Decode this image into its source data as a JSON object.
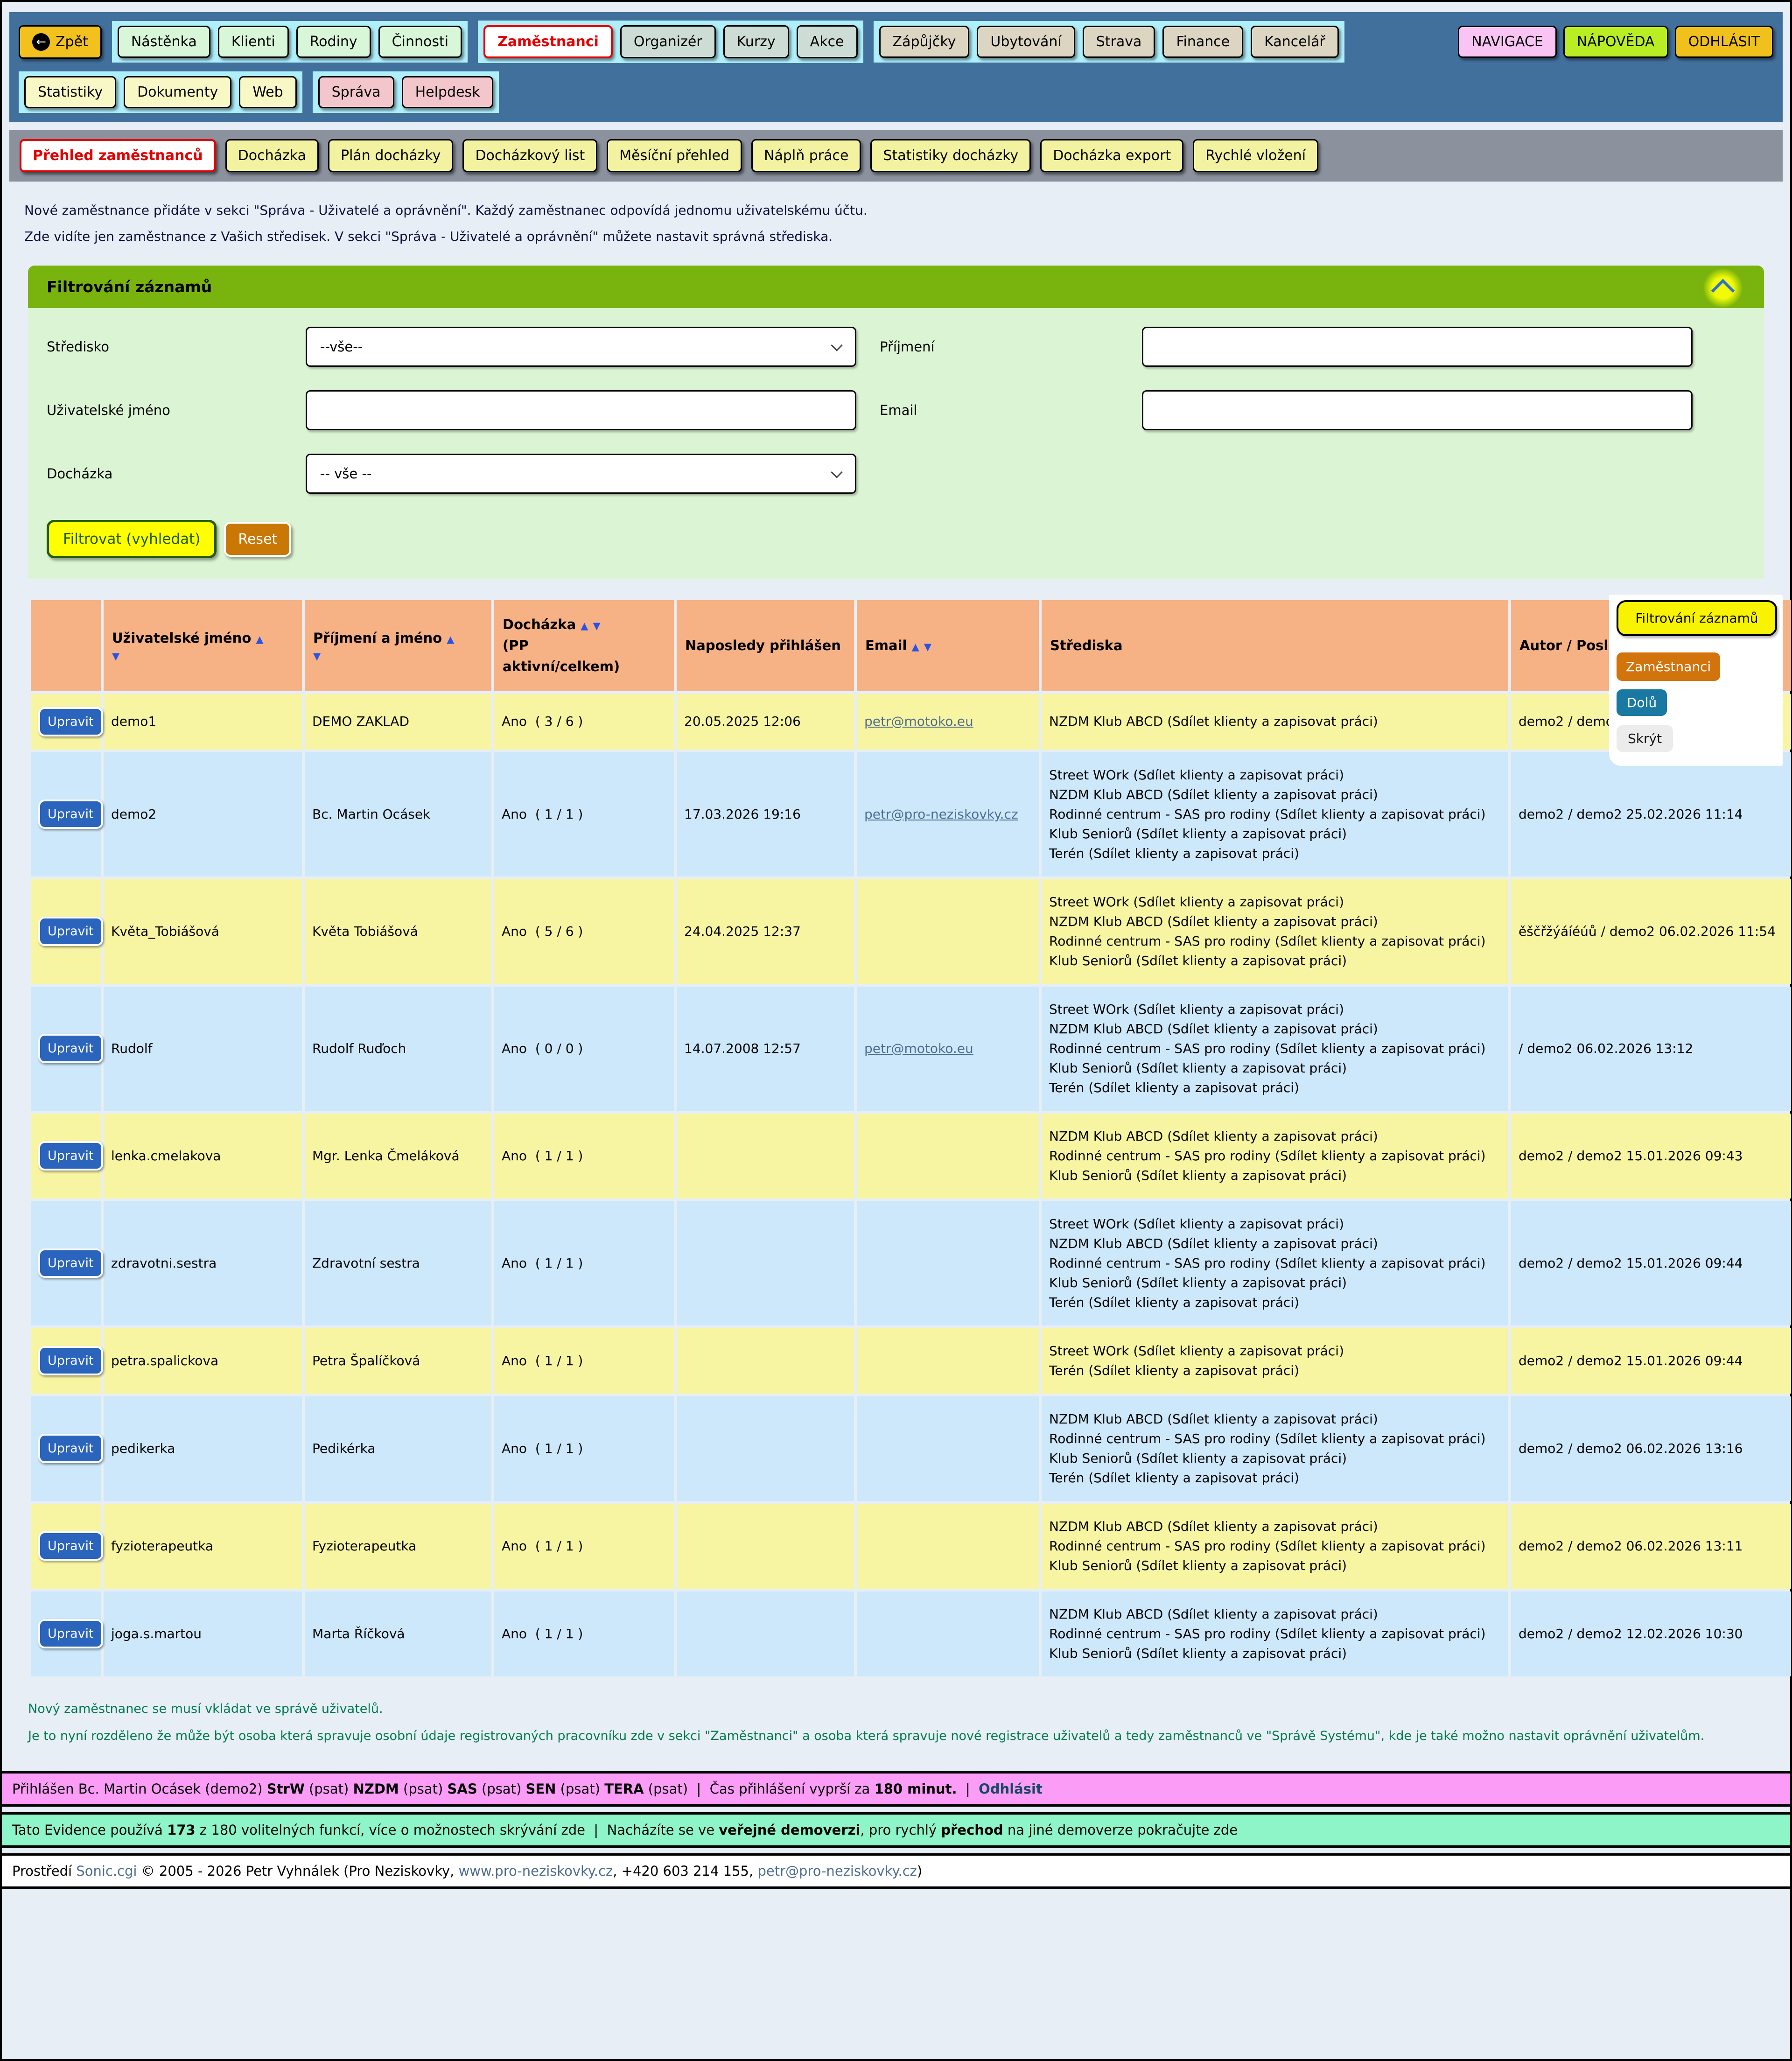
{
  "nav": {
    "back": {
      "label": "Zpět",
      "icon": "←",
      "color": "#f2c11d"
    },
    "groups_row1": [
      {
        "color": "#d8f7d8",
        "buttons": [
          {
            "label": "Nástěnka"
          },
          {
            "label": "Klienti"
          },
          {
            "label": "Rodiny"
          },
          {
            "label": "Činnosti"
          }
        ]
      },
      {
        "color": "#cddcd4",
        "buttons": [
          {
            "label": "Zaměstnanci",
            "active": true
          },
          {
            "label": "Organizér"
          },
          {
            "label": "Kurzy"
          },
          {
            "label": "Akce"
          }
        ]
      },
      {
        "color": "#dcd5c2",
        "buttons": [
          {
            "label": "Zápůjčky"
          },
          {
            "label": "Ubytování"
          },
          {
            "label": "Strava"
          },
          {
            "label": "Finance"
          },
          {
            "label": "Kancelář"
          }
        ]
      }
    ],
    "right_buttons": [
      {
        "label": "NAVIGACE",
        "color": "#f9c4f4"
      },
      {
        "label": "NÁPOVĚDA",
        "color": "#b9ee24"
      },
      {
        "label": "ODHLÁSIT",
        "color": "#f0c11c"
      }
    ],
    "groups_row2": [
      {
        "color": "#f8f8c6",
        "buttons": [
          {
            "label": "Statistiky"
          },
          {
            "label": "Dokumenty"
          },
          {
            "label": "Web"
          }
        ]
      },
      {
        "color": "#f3c6cb",
        "buttons": [
          {
            "label": "Správa"
          },
          {
            "label": "Helpdesk"
          }
        ]
      }
    ]
  },
  "subnav": {
    "items": [
      {
        "label": "Přehled zaměstnanců",
        "active": true
      },
      {
        "label": "Docházka"
      },
      {
        "label": "Plán docházky"
      },
      {
        "label": "Docházkový list"
      },
      {
        "label": "Měsíční přehled"
      },
      {
        "label": "Náplň práce"
      },
      {
        "label": "Statistiky docházky"
      },
      {
        "label": "Docházka export"
      },
      {
        "label": "Rychlé vložení"
      }
    ]
  },
  "intro_lines": [
    "Nové zaměstnance přidáte v sekci \"Správa - Uživatelé a oprávnění\". Každý zaměstnanec odpovídá jednomu uživatelskému účtu.",
    "Zde vidíte jen zaměstnance z Vašich středisek. V sekci \"Správa - Uživatelé a oprávnění\" můžete nastavit správná střediska."
  ],
  "filter": {
    "title": "Filtrování záznamů",
    "collapse_icon": "chevron-up",
    "stredisko_label": "Středisko",
    "stredisko_value": "--vše--",
    "prijmeni_label": "Příjmení",
    "prijmeni_value": "",
    "uzivatelske_label": "Uživatelské jméno",
    "uzivatelske_value": "",
    "email_label": "Email",
    "email_value": "",
    "dochazka_label": "Docházka",
    "dochazka_value": "-- vše --",
    "submit_label": "Filtrovat (vyhledat)",
    "reset_label": "Reset"
  },
  "popup": {
    "items": [
      {
        "label": "Filtrování záznamů",
        "style": "yellow"
      },
      {
        "label": "Zaměstnanci",
        "style": "orange"
      },
      {
        "label": "Dolů",
        "style": "teal"
      },
      {
        "label": "Skrýt",
        "style": "gray"
      }
    ]
  },
  "table": {
    "edit_label": "Upravit",
    "headers": {
      "username": "Uživatelské jméno",
      "name": "Příjmení a jméno",
      "attendance": "Docházka",
      "attendance_sub1": "(PP",
      "attendance_sub2": "aktivní/celkem)",
      "last_login": "Naposledy přihlášen",
      "email": "Email",
      "centers": "Střediska",
      "author": "Autor / Posl",
      "sort_asc": "▲",
      "sort_desc": "▼"
    },
    "rows": [
      {
        "username": "demo1",
        "name": "DEMO ZAKLAD",
        "attendance": "Ano  ( 3 / 6 )",
        "last_login": "20.05.2025 12:06",
        "email": "petr@motoko.eu",
        "centers": [
          "NZDM Klub ABCD (Sdílet klienty a zapisovat práci)"
        ],
        "author": "demo2 / demo2"
      },
      {
        "username": "demo2",
        "name": "Bc. Martin Ocásek",
        "attendance": "Ano  ( 1 / 1 )",
        "last_login": "17.03.2026 19:16",
        "email": "petr@pro-neziskovky.cz",
        "centers": [
          "Street WOrk (Sdílet klienty a zapisovat práci)",
          "NZDM Klub ABCD (Sdílet klienty a zapisovat práci)",
          "Rodinné centrum - SAS pro rodiny (Sdílet klienty a zapisovat práci)",
          "Klub Seniorů (Sdílet klienty a zapisovat práci)",
          "Terén (Sdílet klienty a zapisovat práci)"
        ],
        "author": "demo2 / demo2 25.02.2026 11:14"
      },
      {
        "username": "Květa_Tobiášová",
        "name": "Květa Tobiášová",
        "attendance": "Ano  ( 5 / 6 )",
        "last_login": "24.04.2025 12:37",
        "email": "",
        "centers": [
          "Street WOrk (Sdílet klienty a zapisovat práci)",
          "NZDM Klub ABCD (Sdílet klienty a zapisovat práci)",
          "Rodinné centrum - SAS pro rodiny (Sdílet klienty a zapisovat práci)",
          "Klub Seniorů (Sdílet klienty a zapisovat práci)"
        ],
        "author": "ěščřžýáíéúů / demo2 06.02.2026 11:54"
      },
      {
        "username": "Rudolf",
        "name": "Rudolf Ruďoch",
        "attendance": "Ano  ( 0 / 0 )",
        "last_login": "14.07.2008 12:57",
        "email": "petr@motoko.eu",
        "centers": [
          "Street WOrk (Sdílet klienty a zapisovat práci)",
          "NZDM Klub ABCD (Sdílet klienty a zapisovat práci)",
          "Rodinné centrum - SAS pro rodiny (Sdílet klienty a zapisovat práci)",
          "Klub Seniorů (Sdílet klienty a zapisovat práci)",
          "Terén (Sdílet klienty a zapisovat práci)"
        ],
        "author": "/ demo2 06.02.2026 13:12"
      },
      {
        "username": "lenka.cmelakova",
        "name": "Mgr. Lenka Čmeláková",
        "attendance": "Ano  ( 1 / 1 )",
        "last_login": "",
        "email": "",
        "centers": [
          "NZDM Klub ABCD (Sdílet klienty a zapisovat práci)",
          "Rodinné centrum - SAS pro rodiny (Sdílet klienty a zapisovat práci)",
          "Klub Seniorů (Sdílet klienty a zapisovat práci)"
        ],
        "author": "demo2 / demo2 15.01.2026 09:43"
      },
      {
        "username": "zdravotni.sestra",
        "name": "Zdravotní sestra",
        "attendance": "Ano  ( 1 / 1 )",
        "last_login": "",
        "email": "",
        "centers": [
          "Street WOrk (Sdílet klienty a zapisovat práci)",
          "NZDM Klub ABCD (Sdílet klienty a zapisovat práci)",
          "Rodinné centrum - SAS pro rodiny (Sdílet klienty a zapisovat práci)",
          "Klub Seniorů (Sdílet klienty a zapisovat práci)",
          "Terén (Sdílet klienty a zapisovat práci)"
        ],
        "author": "demo2 / demo2 15.01.2026 09:44"
      },
      {
        "username": "petra.spalickova",
        "name": "Petra Špalíčková",
        "attendance": "Ano  ( 1 / 1 )",
        "last_login": "",
        "email": "",
        "centers": [
          "Street WOrk (Sdílet klienty a zapisovat práci)",
          "Terén (Sdílet klienty a zapisovat práci)"
        ],
        "author": "demo2 / demo2 15.01.2026 09:44"
      },
      {
        "username": "pedikerka",
        "name": "Pedikérka",
        "attendance": "Ano  ( 1 / 1 )",
        "last_login": "",
        "email": "",
        "centers": [
          "NZDM Klub ABCD (Sdílet klienty a zapisovat práci)",
          "Rodinné centrum - SAS pro rodiny (Sdílet klienty a zapisovat práci)",
          "Klub Seniorů (Sdílet klienty a zapisovat práci)",
          "Terén (Sdílet klienty a zapisovat práci)"
        ],
        "author": "demo2 / demo2 06.02.2026 13:16"
      },
      {
        "username": "fyzioterapeutka",
        "name": "Fyzioterapeutka",
        "attendance": "Ano  ( 1 / 1 )",
        "last_login": "",
        "email": "",
        "centers": [
          "NZDM Klub ABCD (Sdílet klienty a zapisovat práci)",
          "Rodinné centrum - SAS pro rodiny (Sdílet klienty a zapisovat práci)",
          "Klub Seniorů (Sdílet klienty a zapisovat práci)"
        ],
        "author": "demo2 / demo2 06.02.2026 13:11"
      },
      {
        "username": "joga.s.martou",
        "name": "Marta Říčková",
        "attendance": "Ano  ( 1 / 1 )",
        "last_login": "",
        "email": "",
        "centers": [
          "NZDM Klub ABCD (Sdílet klienty a zapisovat práci)",
          "Rodinné centrum - SAS pro rodiny (Sdílet klienty a zapisovat práci)",
          "Klub Seniorů (Sdílet klienty a zapisovat práci)"
        ],
        "author": "demo2 / demo2 12.02.2026 10:30"
      }
    ]
  },
  "notes": [
    "Nový zaměstnanec se musí vkládat ve správě uživatelů.",
    "Je to nyní rozděleno že může být osoba která spravuje osobní údaje registrovaných pracovníku zde v sekci \"Zaměstnanci\" a osoba která spravuje nové registrace uživatelů a tedy zaměstnanců ve \"Správě Systému\", kde je také možno nastavit oprávnění uživatelům."
  ],
  "footer": {
    "session_bar": [
      {
        "text": "Přihlášen Bc. Martin Ocásek (demo2) "
      },
      {
        "text": "StrW",
        "bold": true
      },
      {
        "text": " (psat) "
      },
      {
        "text": "NZDM",
        "bold": true
      },
      {
        "text": " (psat) "
      },
      {
        "text": "SAS",
        "bold": true
      },
      {
        "text": " (psat) "
      },
      {
        "text": "SEN",
        "bold": true
      },
      {
        "text": " (psat) "
      },
      {
        "text": "TERA",
        "bold": true
      },
      {
        "text": " (psat)"
      },
      {
        "text": "  |  "
      },
      {
        "text": "Čas přihlášení vyprší za "
      },
      {
        "text": "180 minut.",
        "bold": true
      },
      {
        "text": "  |  "
      },
      {
        "text": "Odhlásit",
        "bold": true,
        "underline": true,
        "link": true
      }
    ],
    "demo_bar": [
      {
        "text": "Tato Evidence používá "
      },
      {
        "text": "173",
        "bold": true
      },
      {
        "text": " z 180 volitelných funkcí, "
      },
      {
        "text": "více o možnostech skrývání zde",
        "underline": true,
        "link": true
      },
      {
        "text": "  |  Nacházíte se ve "
      },
      {
        "text": "veřejné demoverzi",
        "bold": true
      },
      {
        "text": ", "
      },
      {
        "text": "pro rychlý ",
        "underline": true,
        "link": true
      },
      {
        "text": "přechod",
        "bold": true,
        "underline": true,
        "link": true
      },
      {
        "text": " na jiné demoverze pokračujte zde",
        "underline": true,
        "link": true
      }
    ],
    "credits_bar": [
      {
        "text": "Prostředí "
      },
      {
        "text": "Sonic.cgi",
        "link": true
      },
      {
        "text": " © 2005 - 2026 Petr Vyhnálek (Pro Neziskovky, "
      },
      {
        "text": "www.pro-neziskovky.cz",
        "link": true
      },
      {
        "text": ", +420 603 214 155, "
      },
      {
        "text": "petr@pro-neziskovky.cz",
        "link": true
      },
      {
        "text": ")"
      }
    ]
  },
  "colors": {
    "top_band": "#42709d",
    "nav_group_bg": "#aeeffb",
    "subnav_band": "#8b919d",
    "active_red": "#e30000",
    "filter_header": "#79b30d",
    "filter_body": "#dbf4d3",
    "table_header": "#f6b184",
    "row_yellow": "#f8f5a2",
    "row_blue": "#cce8fa",
    "edit_button": "#2a64bc",
    "session_bar": "#fb9cf7",
    "demo_bar": "#8ef5c9"
  }
}
